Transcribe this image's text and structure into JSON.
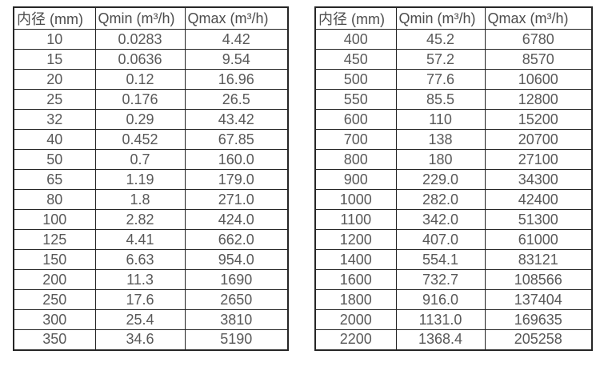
{
  "colors": {
    "background": "#ffffff",
    "border": "#262626",
    "header_text": "#4d4d4d",
    "cell_text": "#595959"
  },
  "tables": [
    {
      "name": "flow-table-small-diameters",
      "headers": [
        "内径 (mm)",
        "Qmin (m³/h)",
        "Qmax (m³/h)"
      ],
      "rows": [
        [
          "10",
          "0.0283",
          "4.42"
        ],
        [
          "15",
          "0.0636",
          "9.54"
        ],
        [
          "20",
          "0.12",
          "16.96"
        ],
        [
          "25",
          "0.176",
          "26.5"
        ],
        [
          "32",
          "0.29",
          "43.42"
        ],
        [
          "40",
          "0.452",
          "67.85"
        ],
        [
          "50",
          "0.7",
          "160.0"
        ],
        [
          "65",
          "1.19",
          "179.0"
        ],
        [
          "80",
          "1.8",
          "271.0"
        ],
        [
          "100",
          "2.82",
          "424.0"
        ],
        [
          "125",
          "4.41",
          "662.0"
        ],
        [
          "150",
          "6.63",
          "954.0"
        ],
        [
          "200",
          "11.3",
          "1690"
        ],
        [
          "250",
          "17.6",
          "2650"
        ],
        [
          "300",
          "25.4",
          "3810"
        ],
        [
          "350",
          "34.6",
          "5190"
        ]
      ]
    },
    {
      "name": "flow-table-large-diameters",
      "headers": [
        "内径 (mm)",
        "Qmin (m³/h)",
        "Qmax (m³/h)"
      ],
      "rows": [
        [
          "400",
          "45.2",
          "6780"
        ],
        [
          "450",
          "57.2",
          "8570"
        ],
        [
          "500",
          "77.6",
          "10600"
        ],
        [
          "550",
          "85.5",
          "12800"
        ],
        [
          "600",
          "110",
          "15200"
        ],
        [
          "700",
          "138",
          "20700"
        ],
        [
          "800",
          "180",
          "27100"
        ],
        [
          "900",
          "229.0",
          "34300"
        ],
        [
          "1000",
          "282.0",
          "42400"
        ],
        [
          "1100",
          "342.0",
          "51300"
        ],
        [
          "1200",
          "407.0",
          "61000"
        ],
        [
          "1400",
          "554.1",
          "83121"
        ],
        [
          "1600",
          "732.7",
          "108566"
        ],
        [
          "1800",
          "916.0",
          "137404"
        ],
        [
          "2000",
          "1131.0",
          "169635"
        ],
        [
          "2200",
          "1368.4",
          "205258"
        ]
      ]
    }
  ]
}
